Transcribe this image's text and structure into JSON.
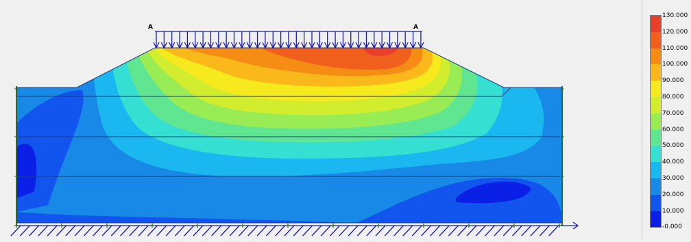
{
  "load_labels": {
    "left": "A",
    "right": "A"
  },
  "legend": {
    "labels": [
      "130.000",
      "120.000",
      "110.000",
      "100.000",
      "90.000",
      "80.000",
      "70.000",
      "60.000",
      "50.000",
      "40.000",
      "30.000",
      "20.000",
      "10.000",
      "-0.000"
    ],
    "colors": [
      "#e8402a",
      "#f0601c",
      "#f58c14",
      "#fab81a",
      "#f6ea1e",
      "#d2ed2e",
      "#9aec55",
      "#60e690",
      "#35dfd2",
      "#1ab7f0",
      "#1889e6",
      "#1155ee",
      "#0a20e6"
    ]
  },
  "colors": {
    "load_arrows": "#1a1aa8",
    "fixities": "#1a1aa8",
    "boundary": "#2c6a2c",
    "layer_lines": "#1a3a7a"
  }
}
